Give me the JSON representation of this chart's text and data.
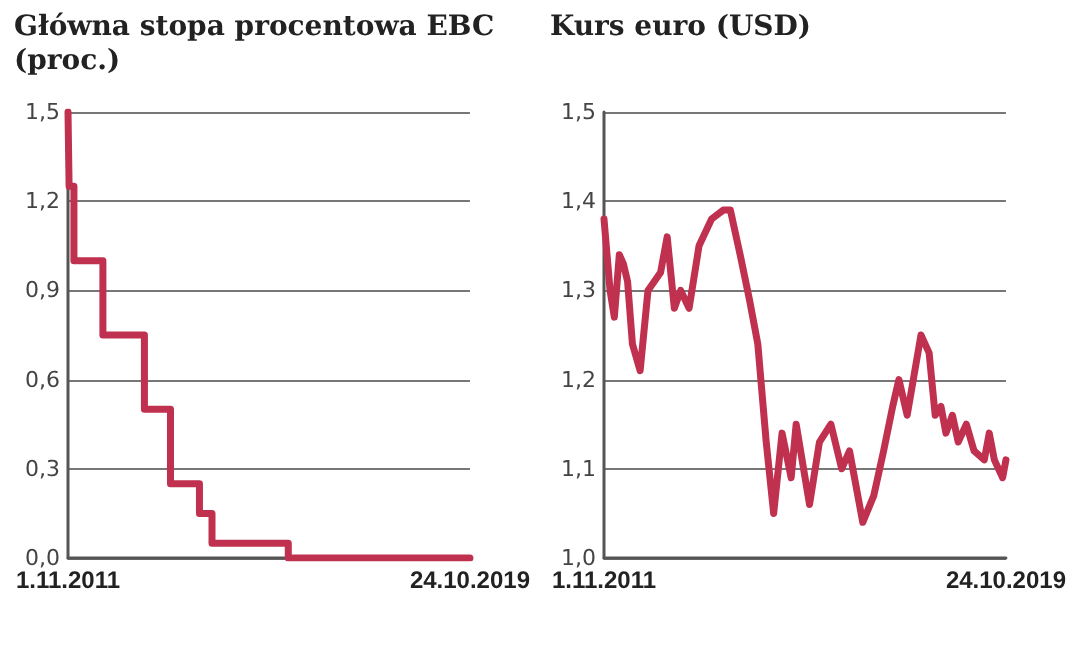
{
  "chart_data": [
    {
      "type": "step",
      "title": "Główna stopa procentowa EBC (proc.)",
      "x": [
        "2011-11-01",
        "2011-11-09",
        "2011-12-14",
        "2012-07-11",
        "2013-05-08",
        "2013-11-13",
        "2014-06-11",
        "2014-09-10",
        "2016-03-16",
        "2019-10-24"
      ],
      "series": [
        {
          "color": "#c0304f",
          "values": [
            1.5,
            1.25,
            1.0,
            0.75,
            0.5,
            0.25,
            0.15,
            0.05,
            0.0,
            0.0
          ]
        }
      ],
      "xlim": [
        "2011-11-01",
        "2019-10-24"
      ],
      "xticks": [
        {
          "value": "2011-11-01",
          "label": "1.11.2011"
        },
        {
          "value": "2019-10-24",
          "label": "24.10.2019"
        }
      ],
      "ylim": [
        0,
        1.5
      ],
      "yticks": [
        {
          "value": 0,
          "label": "0,0"
        },
        {
          "value": 0.3,
          "label": "0,3"
        },
        {
          "value": 0.6,
          "label": "0,6"
        },
        {
          "value": 0.9,
          "label": "0,9"
        },
        {
          "value": 1.2,
          "label": "1,2"
        },
        {
          "value": 1.5,
          "label": "1,5"
        }
      ],
      "grid": "y",
      "marker": "none",
      "line_style": "solid"
    },
    {
      "type": "line",
      "title": "Kurs euro (USD)",
      "x": [
        "2011-11-01",
        "2011-12-15",
        "2012-01-15",
        "2012-02-20",
        "2012-03-20",
        "2012-04-20",
        "2012-05-25",
        "2012-07-20",
        "2012-09-15",
        "2012-12-15",
        "2013-02-01",
        "2013-03-25",
        "2013-05-10",
        "2013-07-10",
        "2013-09-20",
        "2013-12-20",
        "2014-03-15",
        "2014-05-05",
        "2014-07-15",
        "2014-09-20",
        "2014-11-20",
        "2015-01-20",
        "2015-03-15",
        "2015-05-15",
        "2015-07-20",
        "2015-08-25",
        "2015-11-30",
        "2016-02-10",
        "2016-05-03",
        "2016-07-20",
        "2016-09-15",
        "2016-12-20",
        "2017-03-10",
        "2017-05-20",
        "2017-07-25",
        "2017-09-08",
        "2017-11-07",
        "2018-02-15",
        "2018-04-15",
        "2018-05-29",
        "2018-07-10",
        "2018-08-15",
        "2018-10-01",
        "2018-11-12",
        "2019-01-10",
        "2019-03-07",
        "2019-05-20",
        "2019-06-25",
        "2019-08-01",
        "2019-09-30",
        "2019-10-24"
      ],
      "series": [
        {
          "color": "#c0304f",
          "values": [
            1.38,
            1.3,
            1.27,
            1.34,
            1.33,
            1.31,
            1.24,
            1.21,
            1.3,
            1.32,
            1.36,
            1.28,
            1.3,
            1.28,
            1.35,
            1.38,
            1.39,
            1.39,
            1.34,
            1.29,
            1.24,
            1.13,
            1.05,
            1.14,
            1.09,
            1.15,
            1.06,
            1.13,
            1.15,
            1.1,
            1.12,
            1.04,
            1.07,
            1.12,
            1.17,
            1.2,
            1.16,
            1.25,
            1.23,
            1.16,
            1.17,
            1.14,
            1.16,
            1.13,
            1.15,
            1.12,
            1.11,
            1.14,
            1.11,
            1.09,
            1.11
          ]
        }
      ],
      "xlim": [
        "2011-11-01",
        "2019-10-24"
      ],
      "xticks": [
        {
          "value": "2011-11-01",
          "label": "1.11.2011"
        },
        {
          "value": "2019-10-24",
          "label": "24.10.2019"
        }
      ],
      "ylim": [
        1.0,
        1.5
      ],
      "yticks": [
        {
          "value": 1.0,
          "label": "1,0"
        },
        {
          "value": 1.1,
          "label": "1,1"
        },
        {
          "value": 1.2,
          "label": "1,2"
        },
        {
          "value": 1.3,
          "label": "1,3"
        },
        {
          "value": 1.4,
          "label": "1,4"
        },
        {
          "value": 1.5,
          "label": "1,5"
        }
      ],
      "grid": "y",
      "marker": "none",
      "line_style": "solid"
    }
  ]
}
